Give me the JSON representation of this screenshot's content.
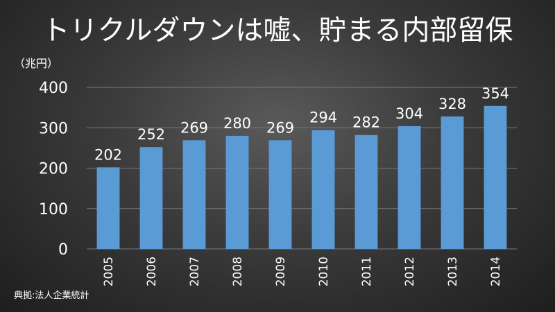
{
  "slide": {
    "title": "トリクルダウンは嘘、貯まる内部留保",
    "unit_label": "（兆円）",
    "source": "典拠:法人企業統計"
  },
  "chart_data": {
    "type": "bar",
    "categories": [
      "2005",
      "2006",
      "2007",
      "2008",
      "2009",
      "2010",
      "2011",
      "2012",
      "2013",
      "2014"
    ],
    "values": [
      202,
      252,
      269,
      280,
      269,
      294,
      282,
      304,
      328,
      354
    ],
    "ylim": [
      0,
      400
    ],
    "yticks": [
      "0",
      "100",
      "200",
      "300",
      "400"
    ],
    "grid": true,
    "bar_color": "#5b9bd5",
    "data_labels": true
  }
}
